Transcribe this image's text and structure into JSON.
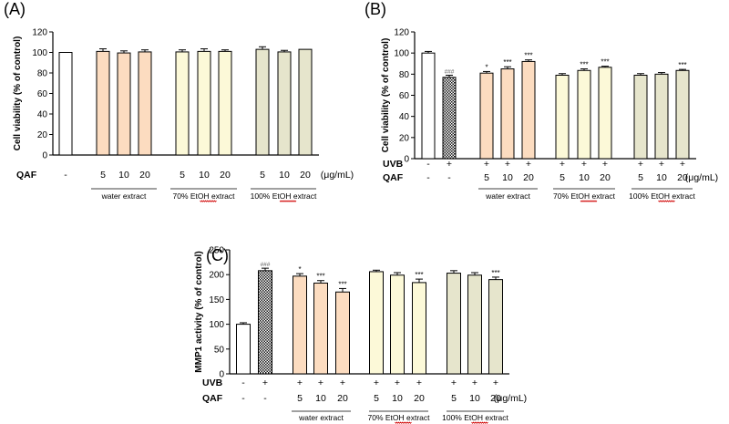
{
  "chart_data": [
    {
      "type": "bar",
      "panel_label": "(A)",
      "ylabel": "Cell viability (% of control)",
      "ylim": [
        0,
        120
      ],
      "yticks": [
        0,
        20,
        40,
        60,
        80,
        100,
        120
      ],
      "row_labels": [
        "QAF"
      ],
      "rows": [
        [
          "-",
          "5",
          "10",
          "20",
          "5",
          "10",
          "20",
          "5",
          "10",
          "20"
        ]
      ],
      "unit": "(μg/mL)",
      "group_labels": [
        "water extract",
        "70% EtOH extract",
        "100% EtOH extract"
      ],
      "values": [
        100,
        101,
        99.5,
        100.5,
        100.5,
        101,
        101,
        103,
        100.5,
        103
      ],
      "errors": [
        0,
        2.5,
        2,
        2,
        2,
        2.5,
        1.5,
        2.5,
        1.5,
        0
      ],
      "sig": [
        "",
        "",
        "",
        "",
        "",
        "",
        "",
        "",
        "",
        ""
      ],
      "fills": [
        "#ffffff",
        "#fcdcc0",
        "#fcdcc0",
        "#fcdcc0",
        "#fcf9d8",
        "#fcf9d8",
        "#fcf9d8",
        "#e6e5cc",
        "#e6e5cc",
        "#e6e5cc"
      ]
    },
    {
      "type": "bar",
      "panel_label": "(B)",
      "ylabel": "Cell viability (% of control)",
      "ylim": [
        0,
        120
      ],
      "yticks": [
        0,
        20,
        40,
        60,
        80,
        100,
        120
      ],
      "row_labels": [
        "UVB",
        "QAF"
      ],
      "rows": [
        [
          "-",
          "+",
          "+",
          "+",
          "+",
          "+",
          "+",
          "+",
          "+",
          "+",
          "+"
        ],
        [
          "-",
          "-",
          "5",
          "10",
          "20",
          "5",
          "10",
          "20",
          "5",
          "10",
          "20"
        ]
      ],
      "unit": "(μg/mL)",
      "group_labels": [
        "water extract",
        "70% EtOH extract",
        "100% EtOH extract"
      ],
      "values": [
        100,
        77,
        81,
        85,
        92,
        79,
        83.5,
        86.5,
        79,
        80,
        83.5
      ],
      "errors": [
        1.5,
        2,
        1.5,
        2,
        1.5,
        1.5,
        1.5,
        1,
        1.5,
        1.5,
        1
      ],
      "sig": [
        "",
        "###",
        "*",
        "***",
        "***",
        "",
        "***",
        "***",
        "",
        "",
        "***"
      ],
      "fills": [
        "#ffffff",
        "pattern",
        "#fcdcc0",
        "#fcdcc0",
        "#fcdcc0",
        "#fcf9d8",
        "#fcf9d8",
        "#fcf9d8",
        "#e6e5cc",
        "#e6e5cc",
        "#e6e5cc"
      ]
    },
    {
      "type": "bar",
      "panel_label": "(C)",
      "ylabel": "MMP1 activity (% of control)",
      "ylim": [
        0,
        250
      ],
      "yticks": [
        0,
        50,
        100,
        150,
        200,
        250
      ],
      "row_labels": [
        "UVB",
        "QAF"
      ],
      "rows": [
        [
          "-",
          "+",
          "+",
          "+",
          "+",
          "+",
          "+",
          "+",
          "+",
          "+",
          "+"
        ],
        [
          "-",
          "-",
          "5",
          "10",
          "20",
          "5",
          "10",
          "20",
          "5",
          "10",
          "20"
        ]
      ],
      "unit": "(μg/mL)",
      "group_labels": [
        "water extract",
        "70% EtOH extract",
        "100% EtOH extract"
      ],
      "values": [
        100,
        208,
        197,
        183,
        165,
        206,
        199,
        184,
        203,
        199,
        190
      ],
      "errors": [
        3,
        5,
        5,
        5,
        7,
        3,
        5,
        7,
        5,
        5,
        5
      ],
      "sig": [
        "",
        "###",
        "*",
        "***",
        "***",
        "",
        "",
        "***",
        "",
        "",
        "***"
      ],
      "fills": [
        "#ffffff",
        "pattern",
        "#fcdcc0",
        "#fcdcc0",
        "#fcdcc0",
        "#fcf9d8",
        "#fcf9d8",
        "#fcf9d8",
        "#e6e5cc",
        "#e6e5cc",
        "#e6e5cc"
      ]
    }
  ]
}
